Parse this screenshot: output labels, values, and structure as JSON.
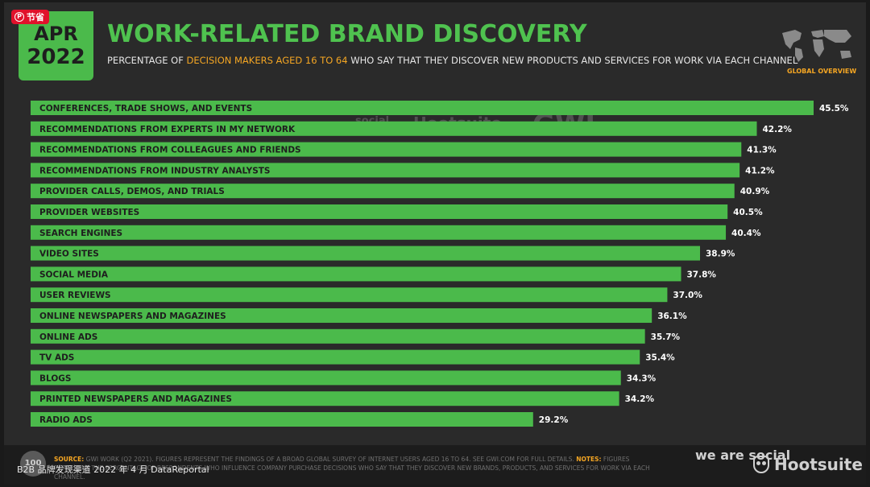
{
  "save_pill": {
    "label": "节省",
    "icon": "pinterest-icon"
  },
  "badge": {
    "month": "APR",
    "year": "2022"
  },
  "header": {
    "title": "WORK-RELATED BRAND DISCOVERY",
    "subtitle_pre": "PERCENTAGE OF ",
    "subtitle_highlight": "DECISION MAKERS AGED 16 TO 64",
    "subtitle_post": " WHO SAY THAT THEY DISCOVER NEW PRODUCTS AND SERVICES FOR WORK VIA EACH CHANNEL",
    "global_overview": "GLOBAL OVERVIEW"
  },
  "watermark": {
    "wearesocial": "we are social",
    "hootsuite": "Hootsuite",
    "gwi": "GWI."
  },
  "chart_data": {
    "type": "bar",
    "orientation": "horizontal",
    "title": "WORK-RELATED BRAND DISCOVERY",
    "xlabel": "",
    "ylabel": "",
    "xlim": [
      0,
      45.5
    ],
    "categories": [
      "CONFERENCES, TRADE SHOWS, AND EVENTS",
      "RECOMMENDATIONS FROM EXPERTS IN MY NETWORK",
      "RECOMMENDATIONS FROM COLLEAGUES AND FRIENDS",
      "RECOMMENDATIONS FROM INDUSTRY ANALYSTS",
      "PROVIDER CALLS, DEMOS, AND TRIALS",
      "PROVIDER WEBSITES",
      "SEARCH ENGINES",
      "VIDEO SITES",
      "SOCIAL MEDIA",
      "USER REVIEWS",
      "ONLINE NEWSPAPERS AND MAGAZINES",
      "ONLINE ADS",
      "TV ADS",
      "BLOGS",
      "PRINTED NEWSPAPERS AND MAGAZINES",
      "RADIO ADS"
    ],
    "values": [
      45.5,
      42.2,
      41.3,
      41.2,
      40.9,
      40.5,
      40.4,
      38.9,
      37.8,
      37.0,
      36.1,
      35.7,
      35.4,
      34.3,
      34.2,
      29.2
    ],
    "value_labels": [
      "45.5%",
      "42.2%",
      "41.3%",
      "41.2%",
      "40.9%",
      "40.5%",
      "40.4%",
      "38.9%",
      "37.8%",
      "37.0%",
      "36.1%",
      "35.7%",
      "35.4%",
      "34.3%",
      "34.2%",
      "29.2%"
    ],
    "bar_color": "#4bba4b"
  },
  "footer": {
    "page_number": "100",
    "source_key": "SOURCE:",
    "source_body": " GWI WORK (Q2 2021). FIGURES REPRESENT THE FINDINGS OF A BROAD GLOBAL SURVEY OF INTERNET USERS AGED 16 TO 64. SEE GWI.COM FOR FULL DETAILS. ",
    "notes_key": "NOTES:",
    "notes_body": " FIGURES REPRESENT THE PERCENTAGE OF RESPONDENTS WHO INFLUENCE COMPANY PURCHASE DECISIONS WHO SAY THAT THEY DISCOVER NEW BRANDS, PRODUCTS, AND SERVICES FOR WORK VIA EACH CHANNEL.",
    "caption": "B2B 品牌发现渠道 2022 年 4 月 DataReportal",
    "wearesocial": "we are social",
    "hootsuite": "Hootsuite"
  },
  "colors": {
    "accent": "#4bba4b",
    "highlight": "#f5a623",
    "background": "#2a2a2a"
  }
}
